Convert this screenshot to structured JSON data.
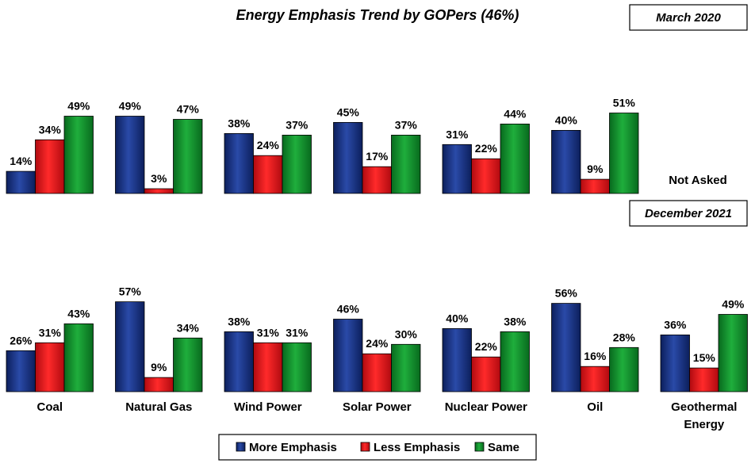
{
  "chart_data": {
    "type": "bar",
    "title": "Energy Emphasis Trend by GOPers (46%)",
    "categories": [
      "Coal",
      "Natural Gas",
      "Wind Power",
      "Solar Power",
      "Nuclear Power",
      "Oil",
      "Geothermal Energy"
    ],
    "category_lines": [
      [
        "Coal"
      ],
      [
        "Natural Gas"
      ],
      [
        "Wind Power"
      ],
      [
        "Solar Power"
      ],
      [
        "Nuclear Power"
      ],
      [
        "Oil"
      ],
      [
        "Geothermal",
        "Energy"
      ]
    ],
    "legend": [
      "More Emphasis",
      "Less Emphasis",
      "Same"
    ],
    "legend_position": "bottom",
    "colors": [
      "#14307a",
      "#e0131a",
      "#0f8a2a"
    ],
    "grid": false,
    "ylim": [
      0,
      60
    ],
    "panels": [
      {
        "label": "March 2020",
        "not_asked_text": "Not Asked",
        "series": [
          {
            "name": "More Emphasis",
            "values": [
              14,
              49,
              38,
              45,
              31,
              40,
              null
            ]
          },
          {
            "name": "Less Emphasis",
            "values": [
              34,
              3,
              24,
              17,
              22,
              9,
              null
            ]
          },
          {
            "name": "Same",
            "values": [
              49,
              47,
              37,
              37,
              44,
              51,
              null
            ]
          }
        ]
      },
      {
        "label": "December 2021",
        "series": [
          {
            "name": "More Emphasis",
            "values": [
              26,
              57,
              38,
              46,
              40,
              56,
              36
            ]
          },
          {
            "name": "Less Emphasis",
            "values": [
              31,
              9,
              31,
              24,
              22,
              16,
              15
            ]
          },
          {
            "name": "Same",
            "values": [
              43,
              34,
              31,
              30,
              38,
              28,
              49
            ]
          }
        ]
      }
    ]
  }
}
